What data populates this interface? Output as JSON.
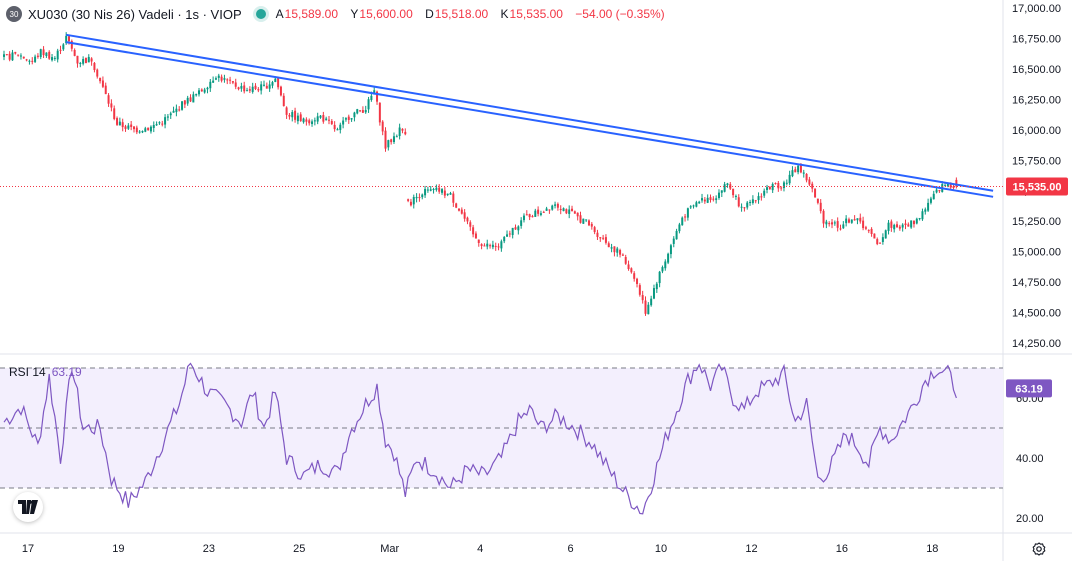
{
  "header": {
    "badge": "30",
    "symbol": "XU030 (30 Nis 26) Vadeli · 1s · VIOP",
    "o_label": "A",
    "o_value": "15,589.00",
    "h_label": "Y",
    "h_value": "15,600.00",
    "l_label": "D",
    "l_value": "15,518.00",
    "c_label": "K",
    "c_value": "15,535.00",
    "change": "−54.00 (−0.35%)"
  },
  "rsi": {
    "label": "RSI 14",
    "value": "63.19",
    "upper": 70,
    "middle": 50,
    "lower": 30
  },
  "colors": {
    "up": "#089981",
    "down": "#f23645",
    "trendline": "#2962ff",
    "rsi": "#7e57c2",
    "rsi_band": "#f3effd"
  },
  "chart_data": {
    "type": "candlestick",
    "price_axis": {
      "ticks": [
        14250,
        14500,
        14750,
        15000,
        15250,
        15500,
        15750,
        16000,
        16250,
        16500,
        16750,
        17000
      ],
      "tick_labels": [
        "14,250.00",
        "14,500.00",
        "14,750.00",
        "15,000.00",
        "15,250.00",
        "15,500.00",
        "15,750.00",
        "16,000.00",
        "16,250.00",
        "16,500.00",
        "16,750.00",
        "17,000.00"
      ],
      "range": [
        14250,
        17000
      ]
    },
    "last_price": {
      "value": 15535,
      "label": "15,535.00"
    },
    "rsi_axis": {
      "ticks": [
        20,
        40,
        60
      ],
      "tick_labels": [
        "20.00",
        "40.00",
        "60.00"
      ],
      "range": [
        16,
        72
      ]
    },
    "time_axis": {
      "labels": [
        "17",
        "19",
        "23",
        "25",
        "Mar",
        "4",
        "6",
        "10",
        "12",
        "16",
        "18"
      ],
      "label_bars": [
        0,
        32,
        64,
        96,
        128,
        160,
        192,
        224,
        256,
        288,
        320
      ]
    },
    "price_path": [
      [
        0,
        16590
      ],
      [
        5,
        16620
      ],
      [
        10,
        16560
      ],
      [
        13,
        16640
      ],
      [
        18,
        16590
      ],
      [
        22,
        16760
      ],
      [
        26,
        16560
      ],
      [
        31,
        16580
      ],
      [
        34,
        16400
      ],
      [
        40,
        16050
      ],
      [
        46,
        16000
      ],
      [
        52,
        16020
      ],
      [
        58,
        16100
      ],
      [
        64,
        16230
      ],
      [
        69,
        16300
      ],
      [
        75,
        16450
      ],
      [
        80,
        16380
      ],
      [
        86,
        16330
      ],
      [
        92,
        16350
      ],
      [
        96,
        16420
      ],
      [
        100,
        16140
      ],
      [
        106,
        16070
      ],
      [
        112,
        16110
      ],
      [
        118,
        15990
      ],
      [
        122,
        16110
      ],
      [
        128,
        16180
      ],
      [
        131,
        16320
      ],
      [
        135,
        15860
      ],
      [
        140,
        16000
      ],
      [
        142,
        15990
      ],
      [
        143,
        15390
      ],
      [
        148,
        15490
      ],
      [
        154,
        15500
      ],
      [
        158,
        15460
      ],
      [
        162,
        15310
      ],
      [
        166,
        15130
      ],
      [
        170,
        15050
      ],
      [
        175,
        15040
      ],
      [
        181,
        15210
      ],
      [
        185,
        15290
      ],
      [
        190,
        15330
      ],
      [
        195,
        15400
      ],
      [
        200,
        15320
      ],
      [
        206,
        15240
      ],
      [
        212,
        15100
      ],
      [
        218,
        14980
      ],
      [
        223,
        14800
      ],
      [
        227,
        14510
      ],
      [
        231,
        14760
      ],
      [
        235,
        14990
      ],
      [
        240,
        15280
      ],
      [
        246,
        15420
      ],
      [
        252,
        15460
      ],
      [
        256,
        15560
      ],
      [
        260,
        15400
      ],
      [
        264,
        15380
      ],
      [
        270,
        15520
      ],
      [
        276,
        15560
      ],
      [
        281,
        15700
      ],
      [
        285,
        15560
      ],
      [
        290,
        15260
      ],
      [
        296,
        15210
      ],
      [
        300,
        15280
      ],
      [
        305,
        15200
      ],
      [
        309,
        15050
      ],
      [
        313,
        15220
      ],
      [
        318,
        15200
      ],
      [
        323,
        15260
      ],
      [
        327,
        15390
      ],
      [
        331,
        15520
      ],
      [
        334,
        15560
      ],
      [
        337,
        15535
      ]
    ],
    "rsi_path": [
      [
        0,
        52
      ],
      [
        6,
        57
      ],
      [
        12,
        44
      ],
      [
        16,
        67
      ],
      [
        20,
        40
      ],
      [
        24,
        71
      ],
      [
        28,
        50
      ],
      [
        34,
        50
      ],
      [
        38,
        33
      ],
      [
        44,
        25
      ],
      [
        50,
        32
      ],
      [
        56,
        45
      ],
      [
        62,
        58
      ],
      [
        66,
        72
      ],
      [
        72,
        62
      ],
      [
        78,
        58
      ],
      [
        84,
        52
      ],
      [
        88,
        62
      ],
      [
        92,
        50
      ],
      [
        96,
        62
      ],
      [
        100,
        40
      ],
      [
        106,
        34
      ],
      [
        112,
        38
      ],
      [
        118,
        35
      ],
      [
        122,
        48
      ],
      [
        128,
        58
      ],
      [
        132,
        64
      ],
      [
        135,
        46
      ],
      [
        138,
        42
      ],
      [
        142,
        28
      ],
      [
        146,
        40
      ],
      [
        152,
        36
      ],
      [
        158,
        30
      ],
      [
        164,
        36
      ],
      [
        170,
        34
      ],
      [
        176,
        40
      ],
      [
        182,
        52
      ],
      [
        186,
        56
      ],
      [
        190,
        50
      ],
      [
        196,
        54
      ],
      [
        202,
        50
      ],
      [
        208,
        45
      ],
      [
        214,
        36
      ],
      [
        220,
        28
      ],
      [
        226,
        22
      ],
      [
        230,
        34
      ],
      [
        234,
        46
      ],
      [
        238,
        56
      ],
      [
        242,
        66
      ],
      [
        246,
        72
      ],
      [
        250,
        64
      ],
      [
        254,
        70
      ],
      [
        258,
        60
      ],
      [
        262,
        56
      ],
      [
        266,
        62
      ],
      [
        270,
        64
      ],
      [
        276,
        68
      ],
      [
        280,
        52
      ],
      [
        284,
        58
      ],
      [
        288,
        33
      ],
      [
        292,
        36
      ],
      [
        298,
        48
      ],
      [
        302,
        44
      ],
      [
        306,
        38
      ],
      [
        310,
        50
      ],
      [
        314,
        46
      ],
      [
        318,
        52
      ],
      [
        322,
        58
      ],
      [
        326,
        66
      ],
      [
        330,
        70
      ],
      [
        334,
        68
      ],
      [
        337,
        63
      ]
    ],
    "trendlines": [
      {
        "from": [
          22,
          16780
        ],
        "to": [
          350,
          15500
        ]
      },
      {
        "from": [
          22,
          16720
        ],
        "to": [
          350,
          15450
        ]
      }
    ]
  }
}
